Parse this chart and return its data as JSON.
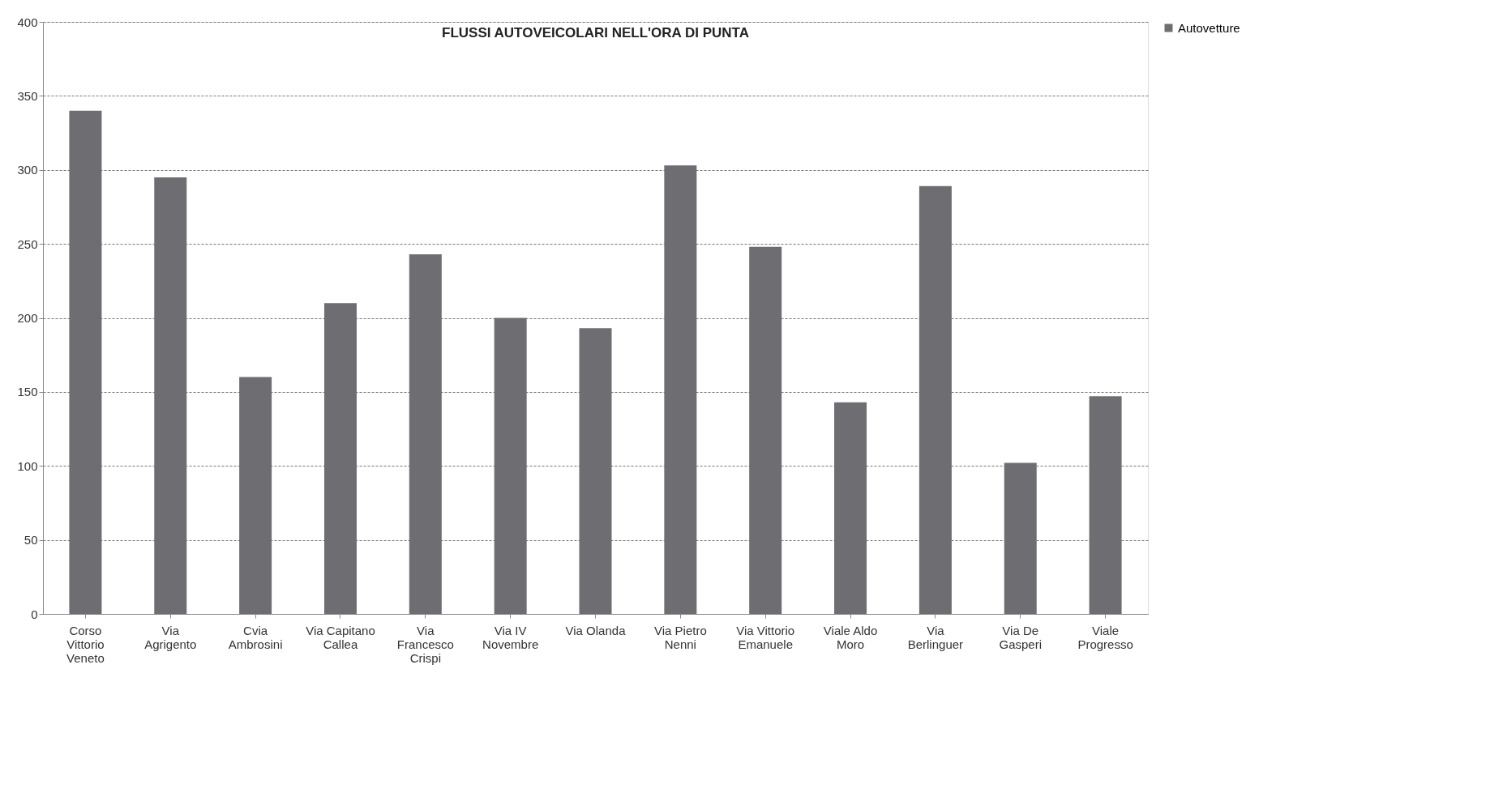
{
  "chart_data": {
    "type": "bar",
    "title": "FLUSSI AUTOVEICOLARI NELL'ORA DI PUNTA",
    "categories": [
      "Corso Vittorio Veneto",
      "Via Agrigento",
      "Cvia Ambrosini",
      "Via Capitano Callea",
      "Via Francesco Crispi",
      "Via IV Novembre",
      "Via Olanda",
      "Via Pietro Nenni",
      "Via Vittorio Emanuele",
      "Viale Aldo Moro",
      "Via Berlinguer",
      "Via De Gasperi",
      "Viale Progresso"
    ],
    "series": [
      {
        "name": "Autovetture",
        "color": "#6e6e72",
        "values": [
          340,
          295,
          160,
          210,
          243,
          200,
          193,
          303,
          248,
          143,
          289,
          102,
          147
        ]
      }
    ],
    "ylim": [
      0,
      400
    ],
    "yticks": [
      0,
      50,
      100,
      150,
      200,
      250,
      300,
      350,
      400
    ],
    "grid": "y",
    "legend": "right"
  }
}
